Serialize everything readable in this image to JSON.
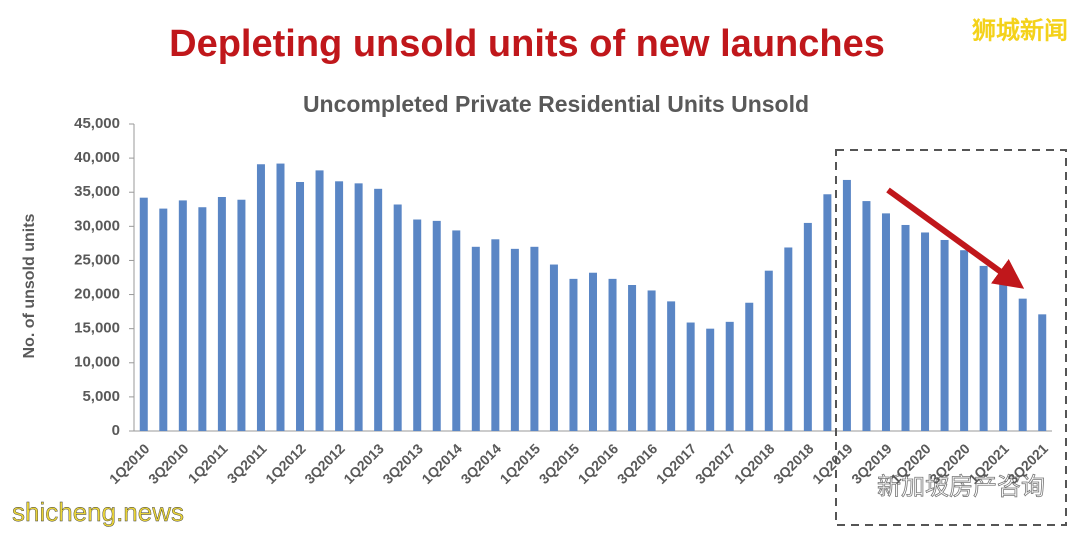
{
  "chart_data": {
    "type": "bar",
    "title": "Depleting unsold units of new launches",
    "subtitle": "Uncompleted Private Residential Units Unsold",
    "y_label": "No. of unsold units",
    "annotations": [
      "狮城新闻",
      "shicheng.news",
      "新加坡房产咨询"
    ],
    "categories": [
      "1Q2010",
      null,
      "3Q2010",
      null,
      "1Q2011",
      null,
      "3Q2011",
      null,
      "1Q2012",
      null,
      "3Q2012",
      null,
      "1Q2013",
      null,
      "3Q2013",
      null,
      "1Q2014",
      null,
      "3Q2014",
      null,
      "1Q2015",
      null,
      "3Q2015",
      null,
      "1Q2016",
      null,
      "3Q2016",
      null,
      "1Q2017",
      null,
      "3Q2017",
      null,
      "1Q2018",
      null,
      "3Q2018",
      null,
      "1Q2019",
      null,
      "3Q2019",
      null,
      "1Q2020",
      null,
      "3Q2020",
      null,
      "1Q2021",
      null,
      "3Q2021"
    ],
    "values": [
      34200,
      32600,
      33800,
      32800,
      34300,
      33900,
      39100,
      39200,
      36500,
      38200,
      36600,
      36300,
      35500,
      33200,
      31000,
      30800,
      29400,
      27000,
      28100,
      26700,
      27000,
      24400,
      22300,
      23200,
      22300,
      21400,
      20600,
      19000,
      15900,
      15000,
      16000,
      18800,
      23500,
      26900,
      30500,
      34700,
      36800,
      33700,
      31900,
      30200,
      29100,
      28000,
      26500,
      24200,
      21700,
      19400,
      17100
    ],
    "color": "#5a86c5",
    "ylim": [
      0,
      45000
    ],
    "yticks": [
      0,
      {
        "value": 5000,
        "label": "5,000"
      },
      {
        "value": 10000,
        "label": "10,000"
      },
      {
        "value": 15000,
        "label": "15,000"
      },
      {
        "value": 20000,
        "label": "20,000"
      },
      {
        "value": 25000,
        "label": "25,000"
      },
      {
        "value": 30000,
        "label": "30,000"
      },
      {
        "value": 35000,
        "label": "35,000"
      },
      {
        "value": 40000,
        "label": "40,000"
      },
      {
        "value": 45000,
        "label": "45,000"
      }
    ],
    "grid": false
  }
}
